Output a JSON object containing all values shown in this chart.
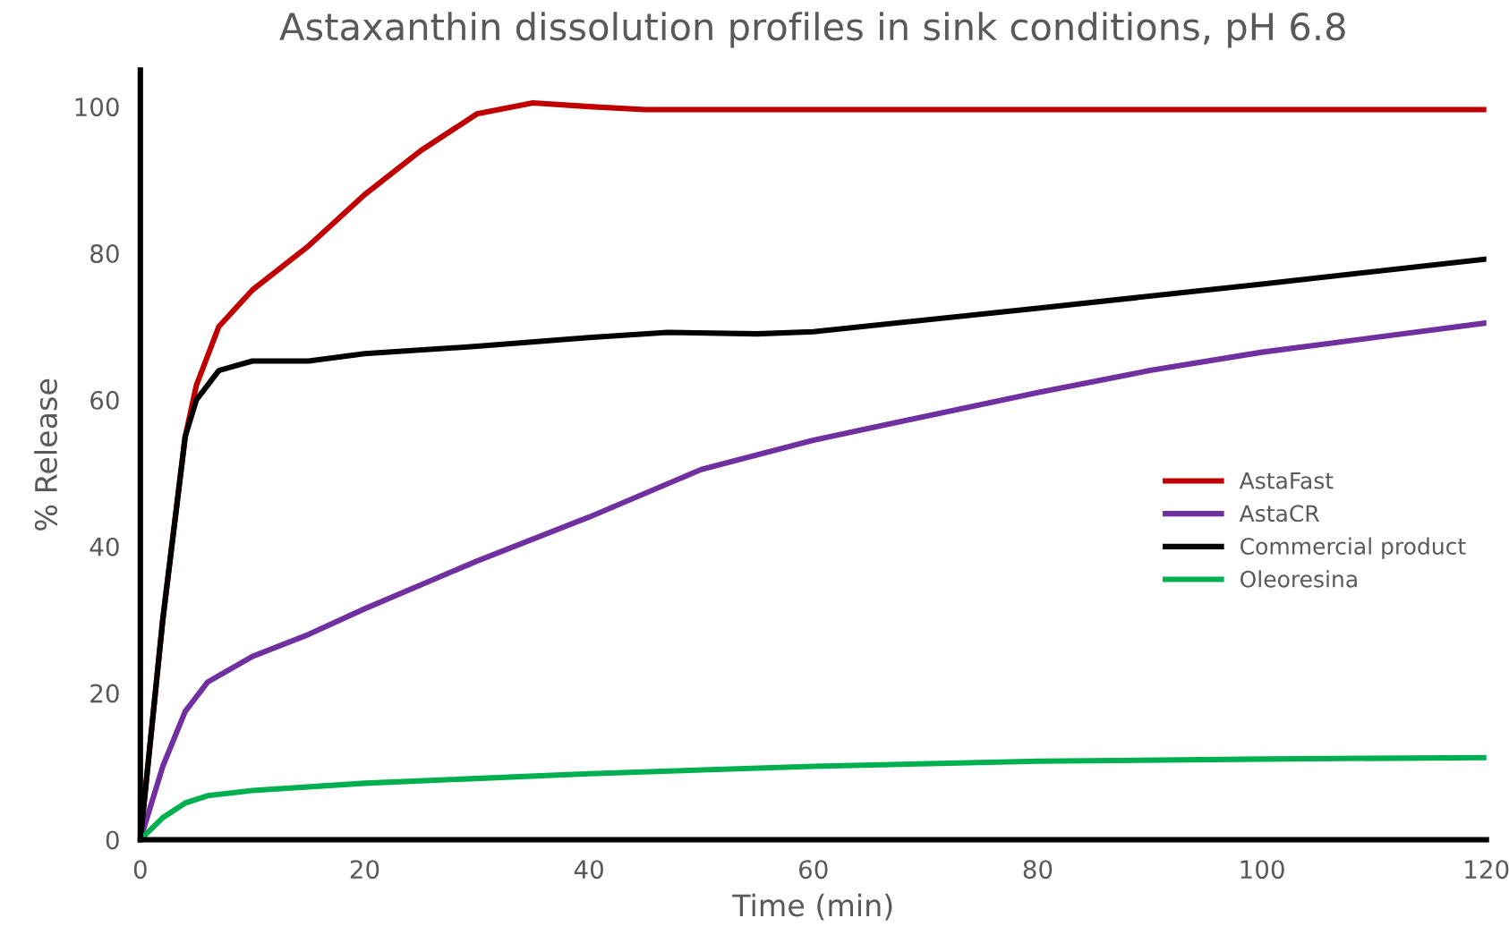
{
  "chart_data": {
    "type": "line",
    "title": "Astaxanthin dissolution profiles in sink conditions, pH 6.8",
    "xlabel": "Time (min)",
    "ylabel": "% Release",
    "xlim": [
      0,
      120
    ],
    "xticks": [
      0,
      20,
      40,
      60,
      80,
      100,
      120
    ],
    "ylim": [
      0,
      105
    ],
    "yticks": [
      0,
      20,
      40,
      60,
      80,
      100
    ],
    "grid": false,
    "legend": "right",
    "marker": "none",
    "line_style": "solid",
    "series": [
      {
        "name": "AstaFast",
        "color": "#c00000",
        "x": [
          0,
          2,
          4,
          5,
          7,
          10,
          15,
          20,
          25,
          30,
          35,
          40,
          45,
          60,
          120
        ],
        "values": [
          0,
          30,
          55,
          62,
          70,
          75,
          81,
          88,
          94,
          99,
          100.5,
          100,
          99.6,
          99.6,
          99.6
        ]
      },
      {
        "name": "AstaCR",
        "color": "#7030a0",
        "x": [
          0,
          2,
          4,
          6,
          10,
          15,
          20,
          30,
          40,
          50,
          60,
          80,
          90,
          100,
          120
        ],
        "values": [
          0,
          10,
          17.5,
          21.5,
          25,
          28,
          31.5,
          38,
          44,
          50.5,
          54.5,
          61,
          64,
          66.5,
          70.5
        ]
      },
      {
        "name": "Commercial product",
        "color": "#000000",
        "x": [
          0,
          2,
          4,
          5,
          7,
          10,
          15,
          20,
          30,
          40,
          47,
          55,
          60,
          80,
          100,
          120
        ],
        "values": [
          0,
          30,
          55,
          60,
          64,
          65.3,
          65.3,
          66.3,
          67.3,
          68.5,
          69.2,
          69,
          69.3,
          72.5,
          75.8,
          79.2
        ]
      },
      {
        "name": "Oleoresina",
        "color": "#00b050",
        "x": [
          0,
          2,
          4,
          6,
          10,
          20,
          40,
          60,
          80,
          100,
          120
        ],
        "values": [
          0,
          3,
          5,
          6,
          6.7,
          7.7,
          9,
          10,
          10.7,
          11,
          11.2
        ]
      }
    ]
  }
}
